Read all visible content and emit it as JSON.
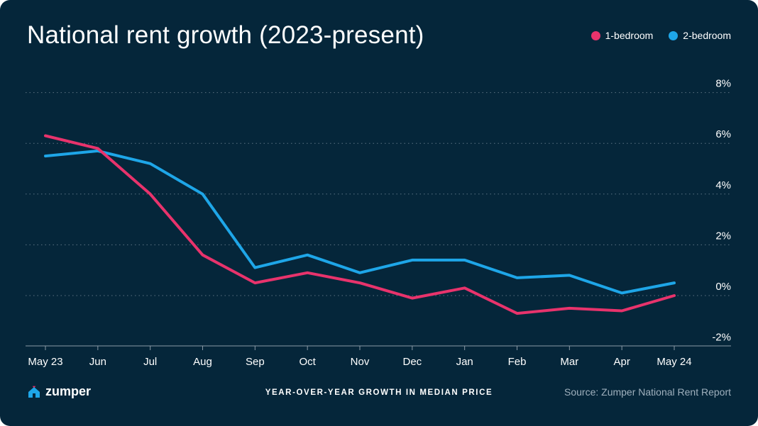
{
  "title": "National rent growth (2023-present)",
  "legend": [
    {
      "label": "1-bedroom",
      "color": "#e8336c"
    },
    {
      "label": "2-bedroom",
      "color": "#1ea6e8"
    }
  ],
  "footer": {
    "brand": "zumper",
    "caption": "YEAR-OVER-YEAR GROWTH IN MEDIAN PRICE",
    "source": "Source: Zumper National Rent Report"
  },
  "colors": {
    "background": "#05263a",
    "grid": "#5d7383",
    "axis": "#8a9aa6"
  },
  "chart_data": {
    "type": "line",
    "categories": [
      "May 23",
      "Jun",
      "Jul",
      "Aug",
      "Sep",
      "Oct",
      "Nov",
      "Dec",
      "Jan",
      "Feb",
      "Mar",
      "Apr",
      "May 24"
    ],
    "y_ticks": [
      "8%",
      "6%",
      "4%",
      "2%",
      "0%",
      "-2%"
    ],
    "ylim": [
      -2,
      8
    ],
    "grid": true,
    "legend_position": "top-right",
    "series": [
      {
        "name": "1-bedroom",
        "color": "#e8336c",
        "values": [
          6.3,
          5.8,
          4.0,
          1.6,
          0.5,
          0.9,
          0.5,
          -0.1,
          0.3,
          -0.7,
          -0.5,
          -0.6,
          0.0
        ]
      },
      {
        "name": "2-bedroom",
        "color": "#1ea6e8",
        "values": [
          5.5,
          5.7,
          5.2,
          4.0,
          1.1,
          1.6,
          0.9,
          1.4,
          1.4,
          0.7,
          0.8,
          0.1,
          0.5
        ]
      }
    ]
  }
}
